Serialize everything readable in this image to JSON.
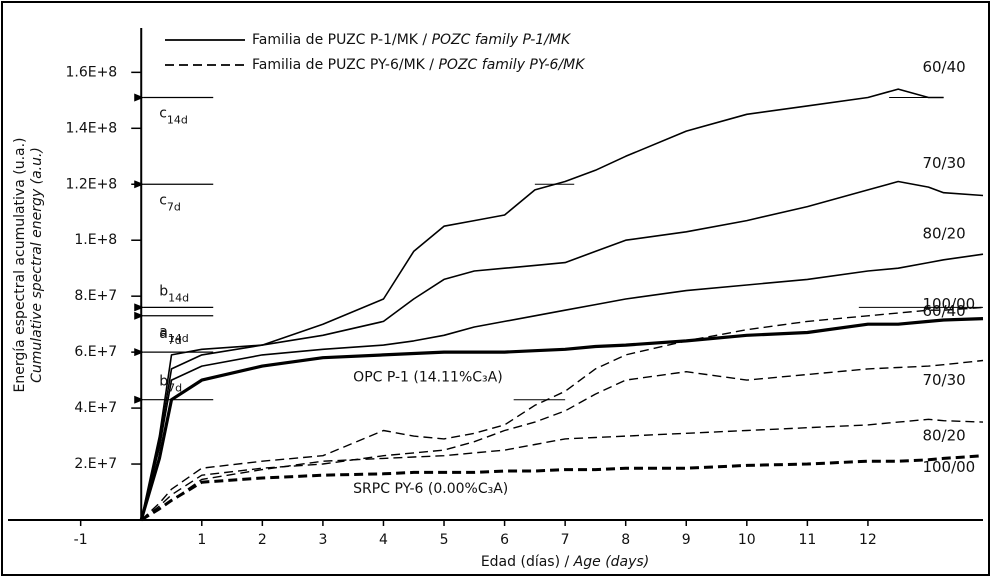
{
  "chart_data": {
    "type": "line",
    "x_label": "Edad (días) / ",
    "x_label_en": "Age (days)",
    "y_label": "Energía espectral acumulativa (u.a.)",
    "y_label_en": "Cumulative spectral energy (a.u.)",
    "xlim": [
      -2.2,
      13.9
    ],
    "ylim": [
      0,
      183000000.0
    ],
    "xticks": [
      -1,
      1,
      2,
      3,
      4,
      5,
      6,
      7,
      8,
      9,
      10,
      11,
      12
    ],
    "yticks": [
      {
        "value": 20000000.0,
        "label": "2.E+7"
      },
      {
        "value": 40000000.0,
        "label": "4.E+7"
      },
      {
        "value": 60000000.0,
        "label": "6.E+7"
      },
      {
        "value": 80000000.0,
        "label": "8.E+7"
      },
      {
        "value": 100000000.0,
        "label": "1.E+8"
      },
      {
        "value": 120000000.0,
        "label": "1.2E+8"
      },
      {
        "value": 140000000.0,
        "label": "1.4E+8"
      },
      {
        "value": 160000000.0,
        "label": "1.6E+8"
      }
    ],
    "legend": [
      {
        "text": "Familia de PUZC P-1/MK / ",
        "text_en": "POZC family P-1/MK",
        "style": "solid"
      },
      {
        "text": "Familia de PUZC PY-6/MK / ",
        "text_en": "POZC family PY-6/MK",
        "style": "dashed"
      }
    ],
    "x": [
      0,
      0.3,
      0.5,
      1,
      2,
      3,
      4,
      4.5,
      5,
      5.5,
      6,
      6.5,
      7,
      7.5,
      8,
      9,
      10,
      11,
      12,
      12.5,
      13,
      13.25,
      13.9
    ],
    "series": [
      {
        "name": "60/40",
        "color": "#000",
        "style": "solid",
        "width": 1.6,
        "values": [
          0,
          30000000.0,
          59000000.0,
          61000000.0,
          62500000.0,
          70000000.0,
          79000000.0,
          96000000.0,
          105000000.0,
          107000000.0,
          109000000.0,
          118000000.0,
          121000000.0,
          125000000.0,
          130000000.0,
          139000000.0,
          145000000.0,
          148000000.0,
          151000000.0,
          154000000.0,
          151000000.0,
          151000000.0,
          null
        ]
      },
      {
        "name": "70/30",
        "color": "#000",
        "style": "solid",
        "width": 1.6,
        "values": [
          0,
          28000000.0,
          54000000.0,
          59000000.0,
          62500000.0,
          66000000.0,
          71000000.0,
          79000000.0,
          86000000.0,
          89000000.0,
          90000000.0,
          91000000.0,
          92000000.0,
          96000000.0,
          100000000.0,
          103000000.0,
          107000000.0,
          112000000.0,
          118000000.0,
          121000000.0,
          119000000.0,
          117000000.0,
          116000000.0
        ]
      },
      {
        "name": "80/20",
        "color": "#000",
        "style": "solid",
        "width": 1.6,
        "values": [
          0,
          26000000.0,
          50000000.0,
          55000000.0,
          59000000.0,
          61000000.0,
          62500000.0,
          64000000.0,
          66000000.0,
          69000000.0,
          71000000.0,
          73000000.0,
          75000000.0,
          77000000.0,
          79000000.0,
          82000000.0,
          84000000.0,
          86000000.0,
          89000000.0,
          90000000.0,
          92000000.0,
          93000000.0,
          95000000.0
        ]
      },
      {
        "name": "100/00",
        "color": "#000",
        "style": "solid",
        "width": 3.2,
        "values": [
          0,
          22000000.0,
          43000000.0,
          50000000.0,
          55000000.0,
          58000000.0,
          59000000.0,
          59500000.0,
          60000000.0,
          60000000.0,
          60000000.0,
          60500000.0,
          61000000.0,
          62000000.0,
          62500000.0,
          64000000.0,
          66000000.0,
          67000000.0,
          70000000.0,
          70000000.0,
          71000000.0,
          71500000.0,
          72000000.0
        ]
      },
      {
        "name": "60/40",
        "color": "#000",
        "style": "dashed",
        "width": 1.4,
        "values": [
          0,
          6000000.0,
          11000000.0,
          18500000.0,
          21000000.0,
          23000000.0,
          32000000.0,
          30000000.0,
          29000000.0,
          31000000.0,
          34000000.0,
          41000000.0,
          46000000.0,
          54000000.0,
          59000000.0,
          64000000.0,
          68000000.0,
          71000000.0,
          73000000.0,
          74000000.0,
          75000000.0,
          75000000.0,
          76000000.0
        ]
      },
      {
        "name": "70/30",
        "color": "#000",
        "style": "dashed",
        "width": 1.4,
        "values": [
          0,
          5000000.0,
          9000000.0,
          16000000.0,
          18500000.0,
          20000000.0,
          23000000.0,
          24000000.0,
          25000000.0,
          28000000.0,
          32000000.0,
          35000000.0,
          39000000.0,
          45000000.0,
          50000000.0,
          53000000.0,
          50000000.0,
          52000000.0,
          54000000.0,
          54500000.0,
          55000000.0,
          55500000.0,
          57000000.0
        ]
      },
      {
        "name": "80/20",
        "color": "#000",
        "style": "dashed",
        "width": 1.4,
        "values": [
          0,
          4000000.0,
          7000000.0,
          14500000.0,
          18000000.0,
          21000000.0,
          22000000.0,
          22500000.0,
          23000000.0,
          24000000.0,
          25000000.0,
          27000000.0,
          29000000.0,
          29500000.0,
          30000000.0,
          31000000.0,
          32000000.0,
          33000000.0,
          34000000.0,
          35000000.0,
          36000000.0,
          35500000.0,
          35000000.0
        ]
      },
      {
        "name": "100/00",
        "color": "#000",
        "style": "dashed",
        "width": 3,
        "values": [
          0,
          4000000.0,
          7000000.0,
          13500000.0,
          15000000.0,
          16000000.0,
          16500000.0,
          17000000.0,
          17000000.0,
          17000000.0,
          17500000.0,
          17500000.0,
          18000000.0,
          18000000.0,
          18500000.0,
          18500000.0,
          19500000.0,
          20000000.0,
          21000000.0,
          21000000.0,
          21500000.0,
          22000000.0,
          23000000.0
        ]
      }
    ],
    "annotations": [
      {
        "letter": "c",
        "sub": "14d",
        "value": 151000000.0,
        "ref_x": [
          12.35,
          13.25
        ]
      },
      {
        "letter": "c",
        "sub": "7d",
        "value": 120000000.0,
        "ref_x": [
          6.5,
          7.15
        ]
      },
      {
        "letter": "b",
        "sub": "14d",
        "value": 76000000.0,
        "ref_x": [
          11.85,
          13.9
        ]
      },
      {
        "letter": "a",
        "sub": "14d",
        "value": 73000000.0
      },
      {
        "letter": "a",
        "sub": "7d",
        "value": 60000000.0
      },
      {
        "letter": "b",
        "sub": "7d",
        "value": 43000000.0,
        "ref_x": [
          6.15,
          7
        ]
      }
    ],
    "notes": [
      {
        "text": "OPC P-1 (14.11%C₃A)",
        "x": 3.5,
        "y": 51000000.0
      },
      {
        "text": "SRPC PY-6 (0.00%C₃A)",
        "x": 3.5,
        "y": 11000000.0
      }
    ]
  }
}
